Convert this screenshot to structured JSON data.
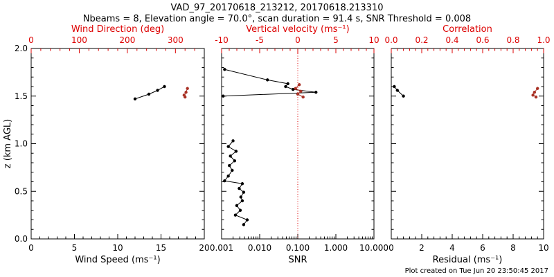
{
  "header": {
    "title": "VAD_97_20170618_213212, 20170618.213310",
    "subtitle": "Nbeams = 8, Elevation angle = 70.0°, scan duration = 91.4 s, SNR Threshold = 0.008"
  },
  "footer": {
    "created": "Plot created on Tue Jun 20 23:50:45 2017"
  },
  "colors": {
    "axis_black": "#000000",
    "axis_red": "#dd0000",
    "series_black": "#000000",
    "series_red": "#a93226"
  },
  "chart_data": [
    {
      "name": "wind",
      "type": "scatter",
      "ylabel": "z (km AGL)",
      "ylim": [
        0.0,
        2.0
      ],
      "yticks": [
        0.0,
        0.5,
        1.0,
        1.5,
        2.0
      ],
      "ytick_labels": [
        "0.0",
        "0.5",
        "1.0",
        "1.5",
        "2.0"
      ],
      "show_y_labels": true,
      "bottom_axis": {
        "label": "Wind Speed (ms⁻¹)",
        "scale": "linear",
        "lim": [
          0,
          20
        ],
        "ticks": [
          0,
          5,
          10,
          15,
          20
        ],
        "tick_labels": [
          "0",
          "5",
          "10",
          "15",
          "20"
        ],
        "color": "#000000"
      },
      "top_axis": {
        "label": "Wind Direction (deg)",
        "scale": "linear",
        "lim": [
          0,
          360
        ],
        "ticks": [
          0,
          100,
          200,
          300
        ],
        "tick_labels": [
          "0",
          "100",
          "200",
          "300"
        ],
        "color": "#dd0000"
      },
      "series": [
        {
          "name": "wind-speed",
          "axis": "bottom",
          "color": "#000000",
          "points": [
            [
              12.0,
              1.47
            ],
            [
              13.6,
              1.52
            ],
            [
              14.6,
              1.56
            ],
            [
              15.4,
              1.6
            ]
          ]
        },
        {
          "name": "wind-direction",
          "axis": "top",
          "color": "#a93226",
          "points": [
            [
              325,
              1.58
            ],
            [
              322,
              1.54
            ],
            [
              318,
              1.51
            ],
            [
              320,
              1.49
            ]
          ]
        }
      ]
    },
    {
      "name": "snr",
      "type": "scatter",
      "ylabel": "",
      "ylim": [
        0.0,
        2.0
      ],
      "yticks": [
        0.0,
        0.5,
        1.0,
        1.5,
        2.0
      ],
      "ytick_labels": [
        "0.0",
        "0.5",
        "1.0",
        "1.5",
        "2.0"
      ],
      "show_y_labels": false,
      "bottom_axis": {
        "label": "SNR",
        "scale": "log",
        "lim": [
          0.001,
          10.0
        ],
        "ticks": [
          0.001,
          0.01,
          0.1,
          1.0,
          10.0
        ],
        "tick_labels": [
          "0.001",
          "0.010",
          "0.100",
          "1.000",
          "10.000"
        ],
        "color": "#000000"
      },
      "top_axis": {
        "label": "Vertical velocity (ms⁻¹)",
        "scale": "linear",
        "lim": [
          -10,
          10
        ],
        "ticks": [
          -10,
          -5,
          0,
          5,
          10
        ],
        "tick_labels": [
          "-10",
          "-5",
          "0",
          "5",
          "10"
        ],
        "color": "#dd0000"
      },
      "ref_line": {
        "axis": "top",
        "value": 0,
        "color": "#dd0000",
        "style": "dotted"
      },
      "series": [
        {
          "name": "snr-upper",
          "axis": "bottom",
          "color": "#000000",
          "points": [
            [
              0.0012,
              1.78
            ],
            [
              0.016,
              1.67
            ],
            [
              0.055,
              1.63
            ],
            [
              0.048,
              1.6
            ],
            [
              0.075,
              1.57
            ],
            [
              0.3,
              1.54
            ],
            [
              0.0011,
              1.5
            ]
          ]
        },
        {
          "name": "snr-lower",
          "axis": "bottom",
          "color": "#000000",
          "points": [
            [
              0.002,
              1.03
            ],
            [
              0.0015,
              0.97
            ],
            [
              0.0024,
              0.92
            ],
            [
              0.0017,
              0.87
            ],
            [
              0.0022,
              0.82
            ],
            [
              0.0016,
              0.77
            ],
            [
              0.0019,
              0.72
            ],
            [
              0.0015,
              0.66
            ],
            [
              0.0012,
              0.61
            ],
            [
              0.0035,
              0.58
            ],
            [
              0.0029,
              0.53
            ],
            [
              0.0038,
              0.49
            ],
            [
              0.0032,
              0.44
            ],
            [
              0.0035,
              0.4
            ],
            [
              0.0025,
              0.35
            ],
            [
              0.0031,
              0.3
            ],
            [
              0.0023,
              0.25
            ],
            [
              0.0047,
              0.2
            ],
            [
              0.0038,
              0.15
            ]
          ]
        },
        {
          "name": "vertical-velocity",
          "axis": "top",
          "color": "#a93226",
          "points": [
            [
              0.2,
              1.62
            ],
            [
              -0.3,
              1.58
            ],
            [
              0.4,
              1.55
            ],
            [
              0.0,
              1.52
            ],
            [
              0.7,
              1.49
            ]
          ]
        }
      ]
    },
    {
      "name": "residual",
      "type": "scatter",
      "ylabel": "",
      "ylim": [
        0.0,
        2.0
      ],
      "yticks": [
        0.0,
        0.5,
        1.0,
        1.5,
        2.0
      ],
      "ytick_labels": [
        "0.0",
        "0.5",
        "1.0",
        "1.5",
        "2.0"
      ],
      "show_y_labels": false,
      "bottom_axis": {
        "label": "Residual (ms⁻¹)",
        "scale": "linear",
        "lim": [
          0,
          10
        ],
        "ticks": [
          0,
          2,
          4,
          6,
          8,
          10
        ],
        "tick_labels": [
          "0",
          "2",
          "4",
          "6",
          "8",
          "10"
        ],
        "color": "#000000"
      },
      "top_axis": {
        "label": "Correlation",
        "scale": "linear",
        "lim": [
          0.0,
          1.0
        ],
        "ticks": [
          0.0,
          0.2,
          0.4,
          0.6,
          0.8,
          1.0
        ],
        "tick_labels": [
          "0.0",
          "0.2",
          "0.4",
          "0.6",
          "0.8",
          "1.0"
        ],
        "color": "#dd0000"
      },
      "series": [
        {
          "name": "residual",
          "axis": "bottom",
          "color": "#000000",
          "points": [
            [
              0.2,
              1.6
            ],
            [
              0.4,
              1.56
            ],
            [
              0.8,
              1.5
            ]
          ]
        },
        {
          "name": "correlation",
          "axis": "top",
          "color": "#a93226",
          "points": [
            [
              0.96,
              1.58
            ],
            [
              0.94,
              1.54
            ],
            [
              0.93,
              1.51
            ],
            [
              0.95,
              1.49
            ]
          ]
        }
      ]
    }
  ]
}
